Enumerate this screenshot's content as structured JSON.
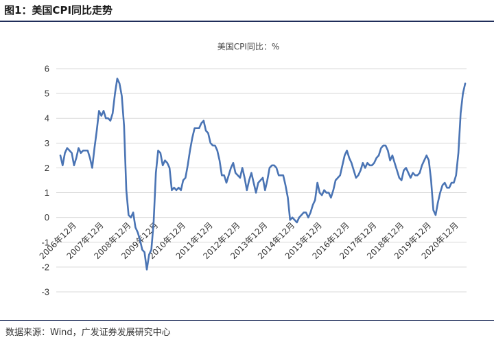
{
  "figure": {
    "title": "图1：美国CPI同比走势",
    "source": "数据来源：Wind，广发证券发展研究中心"
  },
  "chart_data": {
    "type": "line",
    "title": "美国CPI同比：%",
    "xlabel": "",
    "ylabel": "",
    "ylim": [
      -3,
      6
    ],
    "yticks": [
      "6",
      "5",
      "4",
      "3",
      "2",
      "1",
      "0",
      "-1",
      "-2",
      "-3"
    ],
    "grid": true,
    "legend": "none",
    "line_color": "#4a74b4",
    "xticks": [
      "2006年12月",
      "2007年12月",
      "2008年12月",
      "2009年12月",
      "2010年12月",
      "2011年12月",
      "2012年12月",
      "2013年12月",
      "2014年12月",
      "2015年12月",
      "2016年12月",
      "2017年12月",
      "2018年12月",
      "2019年12月",
      "2020年12月"
    ],
    "x_start": "2006-06",
    "x_end": "2021-05",
    "series": [
      {
        "values": [
          2.5,
          2.1,
          2.6,
          2.8,
          2.7,
          2.6,
          2.1,
          2.4,
          2.8,
          2.6,
          2.7,
          2.7,
          2.7,
          2.4,
          2.0,
          2.8,
          3.5,
          4.3,
          4.1,
          4.3,
          4.0,
          4.0,
          3.9,
          4.2,
          5.0,
          5.6,
          5.4,
          4.9,
          3.7,
          1.1,
          0.1,
          0.0,
          0.2,
          -0.4,
          -0.6,
          -0.9,
          -1.3,
          -1.4,
          -2.1,
          -1.5,
          -1.3,
          -0.2,
          1.8,
          2.7,
          2.6,
          2.1,
          2.3,
          2.2,
          2.0,
          1.1,
          1.2,
          1.1,
          1.2,
          1.1,
          1.5,
          1.6,
          2.1,
          2.7,
          3.2,
          3.6,
          3.6,
          3.6,
          3.8,
          3.9,
          3.5,
          3.4,
          3.0,
          2.9,
          2.9,
          2.7,
          2.3,
          1.7,
          1.7,
          1.4,
          1.7,
          2.0,
          2.2,
          1.8,
          1.7,
          1.6,
          2.0,
          1.6,
          1.1,
          1.5,
          1.8,
          1.4,
          1.0,
          1.4,
          1.5,
          1.6,
          1.1,
          1.5,
          2.0,
          2.1,
          2.1,
          2.0,
          1.7,
          1.7,
          1.7,
          1.3,
          0.8,
          -0.1,
          0.0,
          -0.1,
          -0.2,
          0.0,
          0.1,
          0.2,
          0.2,
          0.0,
          0.2,
          0.5,
          0.7,
          1.4,
          1.0,
          0.9,
          1.1,
          1.0,
          1.0,
          0.8,
          1.1,
          1.5,
          1.6,
          1.7,
          2.1,
          2.5,
          2.7,
          2.4,
          2.2,
          1.9,
          1.6,
          1.7,
          1.9,
          2.2,
          2.0,
          2.2,
          2.1,
          2.1,
          2.2,
          2.4,
          2.5,
          2.8,
          2.9,
          2.9,
          2.7,
          2.3,
          2.5,
          2.2,
          1.9,
          1.6,
          1.5,
          1.9,
          2.0,
          1.8,
          1.6,
          1.8,
          1.7,
          1.7,
          1.8,
          2.1,
          2.3,
          2.5,
          2.3,
          1.5,
          0.3,
          0.1,
          0.6,
          1.0,
          1.3,
          1.4,
          1.2,
          1.2,
          1.4,
          1.4,
          1.7,
          2.6,
          4.2,
          5.0,
          5.4
        ]
      }
    ]
  }
}
